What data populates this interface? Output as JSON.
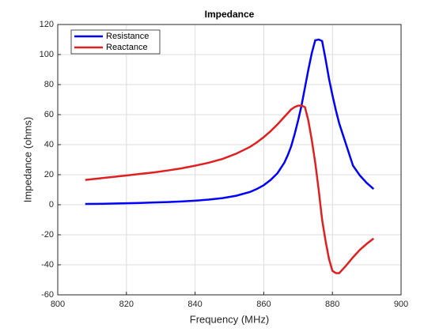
{
  "chart_data": {
    "type": "line",
    "title": "Impedance",
    "xlabel": "Frequency (MHz)",
    "ylabel": "Impedance (ohms)",
    "x": [
      808,
      812,
      816,
      820,
      824,
      828,
      832,
      836,
      840,
      844,
      848,
      852,
      856,
      858,
      860,
      862,
      864,
      866,
      867,
      868,
      869,
      870,
      871,
      872,
      873,
      874,
      875,
      876,
      877,
      878,
      879,
      880,
      881,
      882,
      883,
      884,
      886,
      888,
      890,
      892
    ],
    "series": [
      {
        "name": "Resistance",
        "color": "#0000ff",
        "values": [
          0.5,
          0.6,
          0.8,
          1,
          1.2,
          1.5,
          1.8,
          2.2,
          2.7,
          3.4,
          4.4,
          6,
          8.5,
          10.5,
          13,
          16.5,
          21,
          28,
          33,
          39,
          47,
          56,
          66,
          78,
          90,
          101,
          109.5,
          110,
          109,
          97,
          84,
          73,
          63,
          54,
          47,
          40,
          26,
          19.5,
          14.5,
          10.5
        ]
      },
      {
        "name": "Reactance",
        "color": "#e02020",
        "values": [
          16.5,
          17.5,
          18.5,
          19.5,
          20.5,
          21.5,
          22.8,
          24.2,
          26,
          28,
          30.5,
          34,
          38.5,
          41.5,
          45,
          49,
          53.5,
          58.5,
          61,
          63.5,
          65,
          66,
          66,
          65,
          56,
          43,
          28,
          10,
          -10,
          -24,
          -36,
          -44,
          -45.5,
          -45.5,
          -43,
          -40.5,
          -35,
          -30,
          -26,
          -22.5
        ]
      }
    ],
    "xlim": [
      800,
      900
    ],
    "xticks": [
      800,
      820,
      840,
      860,
      880,
      900
    ],
    "ylim": [
      -60,
      120
    ],
    "yticks": [
      -60,
      -40,
      -20,
      0,
      20,
      40,
      60,
      80,
      100,
      120
    ],
    "grid": true,
    "legend": "upper left"
  }
}
